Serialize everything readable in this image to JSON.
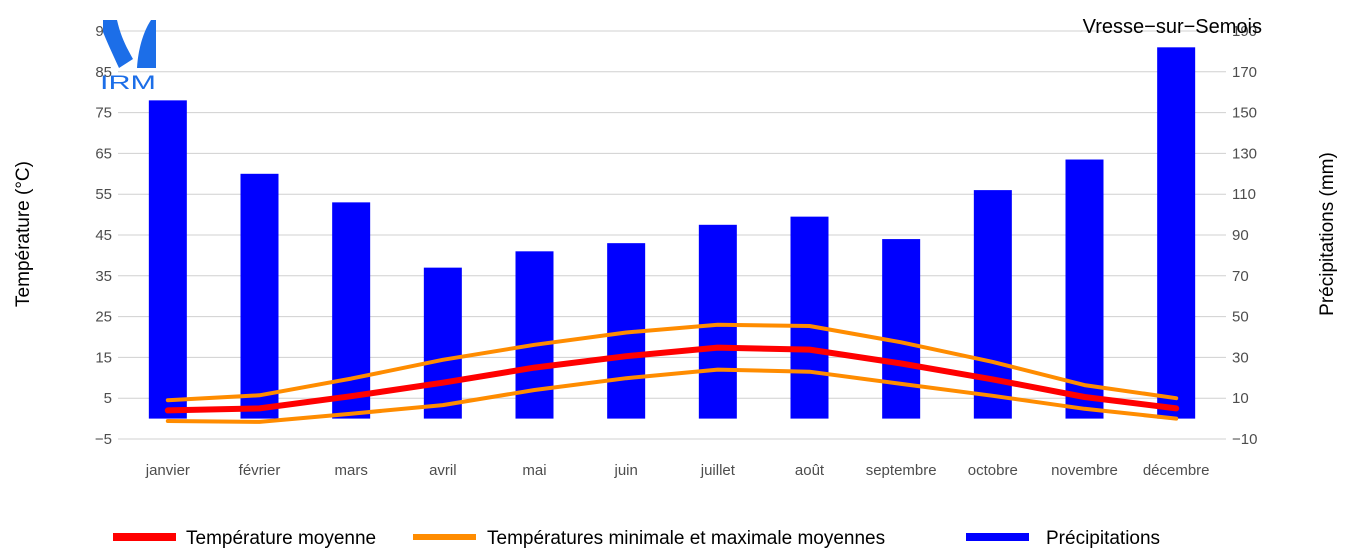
{
  "logo": {
    "text": "IRM"
  },
  "chart_data": {
    "type": "bar",
    "title": "Vresse−sur−Semois",
    "categories": [
      "janvier",
      "février",
      "mars",
      "avril",
      "mai",
      "juin",
      "juillet",
      "août",
      "septembre",
      "octobre",
      "novembre",
      "décembre"
    ],
    "ylabel_left": "Température (°C)",
    "ylabel_right": "Précipitations (mm)",
    "ylim_left": [
      -5,
      95
    ],
    "ylim_right": [
      -10,
      190
    ],
    "left_ticks": [
      "−5",
      "5",
      "15",
      "25",
      "35",
      "45",
      "55",
      "65",
      "75",
      "85",
      "95"
    ],
    "right_ticks": [
      "−10",
      "10",
      "30",
      "50",
      "70",
      "90",
      "110",
      "130",
      "150",
      "170",
      "190"
    ],
    "grid": true,
    "legend_position": "bottom",
    "colors": {
      "precipitation": "#0000ff",
      "mean_temp": "#ff0000",
      "minmax_temp": "#ff8c00",
      "grid": "#d0d0d0"
    },
    "series": [
      {
        "name": "Précipitations",
        "axis": "right",
        "kind": "bar",
        "values": [
          156,
          120,
          106,
          74,
          82,
          86,
          95,
          99,
          88,
          112,
          127,
          182
        ]
      },
      {
        "name": "Température moyenne",
        "axis": "left",
        "kind": "line",
        "values": [
          2.0,
          2.5,
          5.5,
          8.8,
          12.5,
          15.3,
          17.4,
          16.9,
          13.5,
          9.6,
          5.3,
          2.5
        ]
      },
      {
        "name": "Température maximale moyenne",
        "axis": "left",
        "kind": "line",
        "values": [
          4.5,
          5.7,
          9.8,
          14.4,
          18.1,
          21.1,
          23.0,
          22.7,
          18.7,
          13.9,
          8.2,
          5.0
        ]
      },
      {
        "name": "Température minimale moyenne",
        "axis": "left",
        "kind": "line",
        "values": [
          -0.6,
          -0.8,
          1.2,
          3.3,
          7.0,
          9.9,
          12.0,
          11.5,
          8.5,
          5.6,
          2.4,
          0.0
        ]
      }
    ],
    "legend": [
      {
        "label": "Température moyenne",
        "color_key": "mean_temp"
      },
      {
        "label": "Températures minimale et maximale moyennes",
        "color_key": "minmax_temp"
      },
      {
        "label": "Précipitations",
        "color_key": "precipitation"
      }
    ]
  }
}
